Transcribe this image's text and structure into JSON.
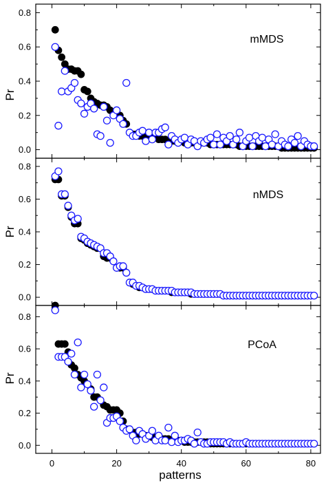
{
  "chart_data": [
    {
      "type": "scatter",
      "title": "mMDS",
      "ylabel": "Pr",
      "xlabel": "",
      "xlim": [
        -5,
        83
      ],
      "ylim": [
        -0.05,
        0.85
      ],
      "yticks": [
        "0.0",
        "0.2",
        "0.4",
        "0.6",
        "0.8"
      ],
      "grid": false,
      "series": [
        {
          "marker": "filled-circle",
          "color": "#000000",
          "x": [
            1,
            2,
            3,
            4,
            5,
            6,
            7,
            8,
            9,
            10,
            11,
            12,
            13,
            14,
            15,
            16,
            17,
            18,
            19,
            20,
            21,
            22,
            23,
            24,
            25,
            26,
            27,
            28,
            29,
            30,
            31,
            32,
            33,
            34,
            35,
            36,
            37,
            38,
            39,
            40,
            41,
            42,
            43,
            44,
            45,
            46,
            47,
            48,
            49,
            50,
            51,
            52,
            53,
            54,
            55,
            56,
            57,
            58,
            59,
            60,
            61,
            62,
            63,
            64,
            65,
            66,
            67,
            68,
            69,
            70,
            71,
            72,
            73,
            74,
            75,
            76,
            77,
            78,
            79,
            80,
            81
          ],
          "y": [
            0.7,
            0.58,
            0.54,
            0.5,
            0.47,
            0.47,
            0.46,
            0.46,
            0.44,
            0.35,
            0.34,
            0.3,
            0.28,
            0.27,
            0.26,
            0.26,
            0.25,
            0.23,
            0.22,
            0.21,
            0.2,
            0.17,
            0.15,
            0.1,
            0.09,
            0.09,
            0.08,
            0.08,
            0.07,
            0.07,
            0.07,
            0.07,
            0.06,
            0.06,
            0.06,
            0.05,
            0.05,
            0.05,
            0.05,
            0.05,
            0.04,
            0.04,
            0.04,
            0.04,
            0.04,
            0.04,
            0.04,
            0.04,
            0.03,
            0.03,
            0.03,
            0.03,
            0.03,
            0.03,
            0.03,
            0.03,
            0.03,
            0.02,
            0.02,
            0.02,
            0.02,
            0.02,
            0.02,
            0.02,
            0.02,
            0.02,
            0.02,
            0.02,
            0.02,
            0.02,
            0.01,
            0.01,
            0.01,
            0.01,
            0.01,
            0.01,
            0.01,
            0.01,
            0.01,
            0.01,
            0.01
          ]
        },
        {
          "marker": "open-circle",
          "color": "#1a1aff",
          "x": [
            1,
            2,
            3,
            4,
            5,
            6,
            7,
            8,
            9,
            10,
            11,
            12,
            13,
            14,
            15,
            16,
            17,
            18,
            19,
            20,
            21,
            22,
            23,
            24,
            25,
            26,
            27,
            28,
            29,
            30,
            31,
            32,
            33,
            34,
            35,
            36,
            37,
            38,
            39,
            40,
            41,
            42,
            43,
            44,
            45,
            46,
            47,
            48,
            49,
            50,
            51,
            52,
            53,
            54,
            55,
            56,
            57,
            58,
            59,
            60,
            61,
            62,
            63,
            64,
            65,
            66,
            67,
            68,
            69,
            70,
            71,
            72,
            73,
            74,
            75,
            76,
            77,
            78,
            79,
            80,
            81
          ],
          "y": [
            0.6,
            0.14,
            0.34,
            0.46,
            0.34,
            0.36,
            0.39,
            0.29,
            0.27,
            0.21,
            0.25,
            0.27,
            0.24,
            0.09,
            0.08,
            0.25,
            0.17,
            0.04,
            0.2,
            0.23,
            0.18,
            0.15,
            0.39,
            0.1,
            0.08,
            0.08,
            0.1,
            0.11,
            0.05,
            0.1,
            0.06,
            0.1,
            0.1,
            0.12,
            0.13,
            0.03,
            0.08,
            0.06,
            0.04,
            0.06,
            0.07,
            0.03,
            0.06,
            0.05,
            0.02,
            0.05,
            0.04,
            0.06,
            0.07,
            0.03,
            0.09,
            0.03,
            0.07,
            0.05,
            0.08,
            0.03,
            0.06,
            0.1,
            0.02,
            0.05,
            0.07,
            0.02,
            0.08,
            0.05,
            0.07,
            0.02,
            0.06,
            0.03,
            0.09,
            0.02,
            0.05,
            0.03,
            0.02,
            0.06,
            0.04,
            0.08,
            0.02,
            0.05,
            0.03,
            0.02,
            0.02
          ]
        }
      ]
    },
    {
      "type": "scatter",
      "title": "nMDS",
      "ylabel": "Pr",
      "xlabel": "",
      "xlim": [
        -5,
        83
      ],
      "ylim": [
        -0.05,
        0.85
      ],
      "yticks": [
        "0.0",
        "0.2",
        "0.4",
        "0.6",
        "0.8"
      ],
      "grid": false,
      "series": [
        {
          "marker": "filled-circle",
          "color": "#000000",
          "x": [
            1,
            2,
            3,
            4,
            5,
            6,
            7,
            8,
            9,
            10,
            11,
            12,
            13,
            14,
            15,
            16,
            17,
            18,
            19,
            20,
            21,
            22,
            23,
            24,
            25,
            26,
            27,
            28,
            29,
            30,
            31,
            32,
            33,
            34,
            35,
            36,
            37,
            38,
            39,
            40,
            41,
            42,
            43,
            44,
            45,
            46,
            47,
            48,
            49,
            50,
            51,
            52,
            53,
            54,
            55,
            56,
            57,
            58,
            59,
            60,
            61,
            62,
            63,
            64,
            65,
            66,
            67,
            68,
            69,
            70,
            71,
            72,
            73,
            74,
            75,
            76,
            77,
            78,
            79,
            80,
            81
          ],
          "y": [
            0.72,
            0.72,
            0.62,
            0.62,
            0.55,
            0.49,
            0.45,
            0.45,
            0.36,
            0.35,
            0.33,
            0.32,
            0.31,
            0.3,
            0.3,
            0.25,
            0.24,
            0.24,
            0.22,
            0.18,
            0.18,
            0.18,
            0.15,
            0.09,
            0.08,
            0.07,
            0.06,
            0.06,
            0.05,
            0.05,
            0.05,
            0.04,
            0.04,
            0.04,
            0.04,
            0.04,
            0.03,
            0.03,
            0.03,
            0.03,
            0.03,
            0.03,
            0.02,
            0.02,
            0.02,
            0.02,
            0.02,
            0.02,
            0.02,
            0.02,
            0.02,
            0.02,
            0.01,
            0.01,
            0.01,
            0.01,
            0.01,
            0.01,
            0.01,
            0.01,
            0.01,
            0.01,
            0.01,
            0.01,
            0.01,
            0.01,
            0.01,
            0.01,
            0.01,
            0.01,
            0.01,
            0.01,
            0.01,
            0.01,
            0.01,
            0.01,
            0.01,
            0.01,
            0.01,
            0.01,
            0.01
          ]
        },
        {
          "marker": "open-circle",
          "color": "#1a1aff",
          "x": [
            1,
            2,
            3,
            4,
            5,
            6,
            7,
            8,
            9,
            10,
            11,
            12,
            13,
            14,
            15,
            16,
            17,
            18,
            19,
            20,
            21,
            22,
            23,
            24,
            25,
            26,
            27,
            28,
            29,
            30,
            31,
            32,
            33,
            34,
            35,
            36,
            37,
            38,
            39,
            40,
            41,
            42,
            43,
            44,
            45,
            46,
            47,
            48,
            49,
            50,
            51,
            52,
            53,
            54,
            55,
            56,
            57,
            58,
            59,
            60,
            61,
            62,
            63,
            64,
            65,
            66,
            67,
            68,
            69,
            70,
            71,
            72,
            73,
            74,
            75,
            76,
            77,
            78,
            79,
            80,
            81
          ],
          "y": [
            0.74,
            0.77,
            0.63,
            0.63,
            0.56,
            0.5,
            0.47,
            0.48,
            0.37,
            0.36,
            0.34,
            0.33,
            0.32,
            0.31,
            0.3,
            0.27,
            0.27,
            0.25,
            0.22,
            0.18,
            0.19,
            0.19,
            0.15,
            0.09,
            0.09,
            0.07,
            0.07,
            0.06,
            0.05,
            0.05,
            0.05,
            0.04,
            0.04,
            0.04,
            0.04,
            0.04,
            0.04,
            0.03,
            0.03,
            0.03,
            0.03,
            0.03,
            0.03,
            0.02,
            0.02,
            0.02,
            0.02,
            0.02,
            0.02,
            0.02,
            0.02,
            0.02,
            0.01,
            0.01,
            0.01,
            0.01,
            0.01,
            0.01,
            0.01,
            0.01,
            0.01,
            0.01,
            0.01,
            0.01,
            0.01,
            0.01,
            0.01,
            0.01,
            0.01,
            0.01,
            0.01,
            0.01,
            0.01,
            0.01,
            0.01,
            0.01,
            0.01,
            0.01,
            0.01,
            0.01,
            0.01
          ]
        }
      ]
    },
    {
      "type": "scatter",
      "title": "PCoA",
      "ylabel": "Pr",
      "xlabel": "patterns",
      "xlim": [
        -5,
        83
      ],
      "ylim": [
        -0.05,
        0.87
      ],
      "xticks": [
        "0",
        "20",
        "40",
        "60",
        "80"
      ],
      "yticks": [
        "0.0",
        "0.2",
        "0.4",
        "0.6",
        "0.8"
      ],
      "grid": false,
      "series": [
        {
          "marker": "filled-circle",
          "color": "#000000",
          "x": [
            1,
            2,
            3,
            4,
            5,
            6,
            7,
            8,
            9,
            10,
            11,
            12,
            13,
            14,
            15,
            16,
            17,
            18,
            19,
            20,
            21,
            22,
            23,
            24,
            25,
            26,
            27,
            28,
            29,
            30,
            31,
            32,
            33,
            34,
            35,
            36,
            37,
            38,
            39,
            40,
            41,
            42,
            43,
            44,
            45,
            46,
            47,
            48,
            49,
            50,
            51,
            52,
            53,
            54,
            55,
            56,
            57,
            58,
            59,
            60,
            61,
            62,
            63,
            64,
            65,
            66,
            67,
            68,
            69,
            70,
            71,
            72,
            73,
            74,
            75,
            76,
            77,
            78,
            79,
            80,
            81
          ],
          "y": [
            0.87,
            0.63,
            0.63,
            0.63,
            0.58,
            0.5,
            0.48,
            0.44,
            0.42,
            0.4,
            0.38,
            0.35,
            0.3,
            0.3,
            0.28,
            0.25,
            0.24,
            0.22,
            0.22,
            0.22,
            0.2,
            0.15,
            0.1,
            0.1,
            0.08,
            0.08,
            0.07,
            0.07,
            0.06,
            0.06,
            0.05,
            0.05,
            0.05,
            0.04,
            0.04,
            0.04,
            0.03,
            0.03,
            0.03,
            0.03,
            0.02,
            0.02,
            0.02,
            0.02,
            0.02,
            0.02,
            0.02,
            0.02,
            0.01,
            0.01,
            0.01,
            0.01,
            0.01,
            0.01,
            0.01,
            0.01,
            0.01,
            0.01,
            0.01,
            0.01,
            0.01,
            0.01,
            0.01,
            0.01,
            0.01,
            0.01,
            0.01,
            0.01,
            0.01,
            0.01,
            0.01,
            0.01,
            0.01,
            0.01,
            0.01,
            0.01,
            0.01,
            0.01,
            0.01,
            0.01,
            0.01
          ]
        },
        {
          "marker": "open-circle",
          "color": "#1a1aff",
          "x": [
            1,
            2,
            3,
            4,
            5,
            6,
            7,
            8,
            9,
            10,
            11,
            12,
            13,
            14,
            15,
            16,
            17,
            18,
            19,
            20,
            21,
            22,
            23,
            24,
            25,
            26,
            27,
            28,
            29,
            30,
            31,
            32,
            33,
            34,
            35,
            36,
            37,
            38,
            39,
            40,
            41,
            42,
            43,
            44,
            45,
            46,
            47,
            48,
            49,
            50,
            51,
            52,
            53,
            54,
            55,
            56,
            57,
            58,
            59,
            60,
            61,
            62,
            63,
            64,
            65,
            66,
            67,
            68,
            69,
            70,
            71,
            72,
            73,
            74,
            75,
            76,
            77,
            78,
            79,
            80,
            81
          ],
          "y": [
            0.84,
            0.55,
            0.55,
            0.55,
            0.52,
            0.57,
            0.44,
            0.64,
            0.36,
            0.44,
            0.38,
            0.34,
            0.24,
            0.44,
            0.28,
            0.36,
            0.14,
            0.17,
            0.17,
            0.18,
            0.15,
            0.11,
            0.09,
            0.1,
            0.06,
            0.03,
            0.09,
            0.07,
            0.04,
            0.06,
            0.09,
            0.03,
            0.06,
            0.03,
            0.03,
            0.11,
            0.02,
            0.06,
            0.02,
            0.03,
            0.03,
            0.04,
            0.03,
            0.01,
            0.08,
            0.02,
            0.01,
            0.01,
            0.02,
            0.02,
            0.02,
            0.02,
            0.02,
            0.01,
            0.02,
            0.01,
            0.01,
            0.01,
            0.01,
            0.02,
            0.01,
            0.01,
            0.01,
            0.01,
            0.01,
            0.01,
            0.01,
            0.01,
            0.01,
            0.01,
            0.01,
            0.01,
            0.01,
            0.01,
            0.01,
            0.01,
            0.01,
            0.01,
            0.01,
            0.01,
            0.01
          ]
        }
      ]
    }
  ]
}
